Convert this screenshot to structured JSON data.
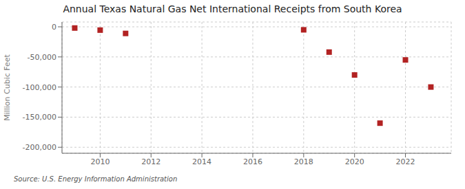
{
  "chart_data": {
    "type": "scatter",
    "title": "Annual Texas Natural Gas Net International Receipts from South Korea",
    "y_label": "Million Cubic Feet",
    "annotation": "Source: U.S. Energy Information Administration",
    "x": [
      2009,
      2010,
      2011,
      2018,
      2019,
      2020,
      2021,
      2022,
      2023
    ],
    "values": [
      -2000,
      -5500,
      -11000,
      -5000,
      -42000,
      -80000,
      -160000,
      -55000,
      -100000
    ],
    "color": "#b22222",
    "marker": "square",
    "xlim": [
      2008.5,
      2023.8
    ],
    "ylim": [
      -210000,
      8000
    ],
    "xticks": [
      2010,
      2012,
      2014,
      2016,
      2018,
      2020,
      2022
    ],
    "yticks": [
      0,
      {
        "value": -50000,
        "label": "-50,000"
      },
      {
        "value": -100000,
        "label": "-100,000"
      },
      {
        "value": -150000,
        "label": "-150,000"
      },
      {
        "value": -200000,
        "label": "-200,000"
      }
    ],
    "grid": true
  }
}
